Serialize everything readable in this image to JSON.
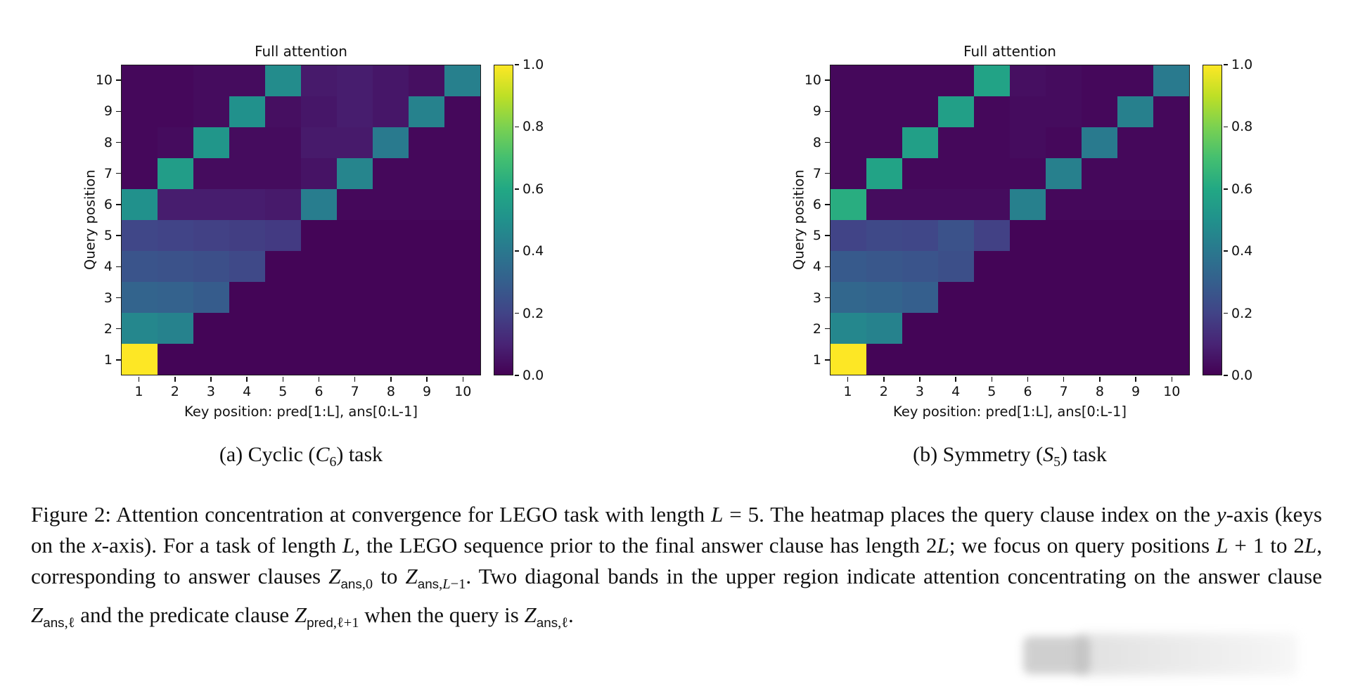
{
  "page": {
    "background": "#ffffff",
    "text_color": "#111111"
  },
  "colormap": {
    "name": "viridis",
    "stops": [
      {
        "t": 0.0,
        "c": "#440154"
      },
      {
        "t": 0.1,
        "c": "#482475"
      },
      {
        "t": 0.2,
        "c": "#414487"
      },
      {
        "t": 0.3,
        "c": "#355f8d"
      },
      {
        "t": 0.4,
        "c": "#2a788e"
      },
      {
        "t": 0.5,
        "c": "#21918c"
      },
      {
        "t": 0.6,
        "c": "#22a884"
      },
      {
        "t": 0.7,
        "c": "#44bf70"
      },
      {
        "t": 0.8,
        "c": "#7ad151"
      },
      {
        "t": 0.9,
        "c": "#bddf26"
      },
      {
        "t": 1.0,
        "c": "#fde725"
      }
    ]
  },
  "chart_data": [
    {
      "type": "heatmap",
      "panel": "a",
      "title": "Full attention",
      "xlabel": "Key position: pred[1:L], ans[0:L-1]",
      "ylabel": "Query position",
      "col_labels": [
        "1",
        "2",
        "3",
        "4",
        "5",
        "6",
        "7",
        "8",
        "9",
        "10"
      ],
      "row_labels_top_to_bottom": [
        "10",
        "9",
        "8",
        "7",
        "6",
        "5",
        "4",
        "3",
        "2",
        "1"
      ],
      "value_range": [
        0,
        1
      ],
      "colorbar_ticks_top_to_bottom": [
        "1.0",
        "0.8",
        "0.6",
        "0.4",
        "0.2",
        "0.0"
      ],
      "values_rows_top_to_bottom": [
        [
          0.02,
          0.02,
          0.03,
          0.03,
          0.48,
          0.07,
          0.08,
          0.06,
          0.04,
          0.43
        ],
        [
          0.02,
          0.02,
          0.03,
          0.5,
          0.04,
          0.06,
          0.08,
          0.06,
          0.44,
          0.02
        ],
        [
          0.02,
          0.03,
          0.52,
          0.03,
          0.03,
          0.07,
          0.07,
          0.41,
          0.02,
          0.02
        ],
        [
          0.02,
          0.55,
          0.03,
          0.03,
          0.03,
          0.05,
          0.45,
          0.02,
          0.02,
          0.02
        ],
        [
          0.5,
          0.08,
          0.08,
          0.08,
          0.07,
          0.42,
          0.02,
          0.02,
          0.02,
          0.02
        ],
        [
          0.21,
          0.2,
          0.19,
          0.18,
          0.17,
          0.01,
          0.01,
          0.01,
          0.01,
          0.01
        ],
        [
          0.26,
          0.25,
          0.24,
          0.22,
          0.01,
          0.01,
          0.01,
          0.01,
          0.01,
          0.01
        ],
        [
          0.32,
          0.31,
          0.29,
          0.01,
          0.01,
          0.01,
          0.01,
          0.01,
          0.01,
          0.01
        ],
        [
          0.46,
          0.44,
          0.01,
          0.01,
          0.01,
          0.01,
          0.01,
          0.01,
          0.01,
          0.01
        ],
        [
          1.0,
          0.01,
          0.01,
          0.01,
          0.01,
          0.01,
          0.01,
          0.01,
          0.01,
          0.01
        ]
      ],
      "subcaption_text": "(a) Cyclic (C6) task",
      "subcaption_html": "(a) Cyclic (<i>C</i><sub>6</sub>) task"
    },
    {
      "type": "heatmap",
      "panel": "b",
      "title": "Full attention",
      "xlabel": "Key position: pred[1:L], ans[0:L-1]",
      "ylabel": "Query position",
      "col_labels": [
        "1",
        "2",
        "3",
        "4",
        "5",
        "6",
        "7",
        "8",
        "9",
        "10"
      ],
      "row_labels_top_to_bottom": [
        "10",
        "9",
        "8",
        "7",
        "6",
        "5",
        "4",
        "3",
        "2",
        "1"
      ],
      "value_range": [
        0,
        1
      ],
      "colorbar_ticks_top_to_bottom": [
        "1.0",
        "0.8",
        "0.6",
        "0.4",
        "0.2",
        "0.0"
      ],
      "values_rows_top_to_bottom": [
        [
          0.02,
          0.02,
          0.02,
          0.02,
          0.58,
          0.04,
          0.03,
          0.02,
          0.02,
          0.41
        ],
        [
          0.02,
          0.02,
          0.02,
          0.56,
          0.02,
          0.03,
          0.03,
          0.02,
          0.43,
          0.02
        ],
        [
          0.02,
          0.02,
          0.56,
          0.02,
          0.02,
          0.03,
          0.02,
          0.41,
          0.02,
          0.02
        ],
        [
          0.02,
          0.58,
          0.02,
          0.02,
          0.02,
          0.02,
          0.43,
          0.02,
          0.02,
          0.02
        ],
        [
          0.62,
          0.03,
          0.03,
          0.03,
          0.03,
          0.43,
          0.02,
          0.02,
          0.02,
          0.02
        ],
        [
          0.2,
          0.22,
          0.21,
          0.25,
          0.19,
          0.01,
          0.01,
          0.01,
          0.01,
          0.01
        ],
        [
          0.28,
          0.27,
          0.26,
          0.24,
          0.01,
          0.01,
          0.01,
          0.01,
          0.01,
          0.01
        ],
        [
          0.33,
          0.32,
          0.3,
          0.01,
          0.01,
          0.01,
          0.01,
          0.01,
          0.01,
          0.01
        ],
        [
          0.46,
          0.44,
          0.01,
          0.01,
          0.01,
          0.01,
          0.01,
          0.01,
          0.01,
          0.01
        ],
        [
          1.0,
          0.01,
          0.01,
          0.01,
          0.01,
          0.01,
          0.01,
          0.01,
          0.01,
          0.01
        ]
      ],
      "subcaption_text": "(b) Symmetry (S5) task",
      "subcaption_html": "(b) Symmetry (<i>S</i><sub>5</sub>) task"
    }
  ],
  "figure_caption": {
    "text": "Figure 2: Attention concentration at convergence for LEGO task with length L = 5. The heatmap places the query clause index on the y-axis (keys on the x-axis). For a task of length L, the LEGO sequence prior to the final answer clause has length 2L; we focus on query positions L + 1 to 2L, corresponding to answer clauses Z_ans,0 to Z_ans,L-1. Two diagonal bands in the upper region indicate attention concentrating on the answer clause Z_ans,l and the predicate clause Z_pred,l+1 when the query is Z_ans,l.",
    "html": "Figure 2: Attention concentration at convergence for LEGO task with length <i>L</i> = 5. The heatmap places the query clause index on the <i>y</i>-axis (keys on the <i>x</i>-axis). For a task of length <i>L</i>, the LEGO sequence prior to the final answer clause has length 2<i>L</i>; we focus on query positions <i>L</i> + 1 to 2<i>L</i>, corresponding to answer clauses <i>Z</i><sub><span class='sf'>ans</span>,0</sub> to <i>Z</i><sub><span class='sf'>ans</span>,<i>L</i>−1</sub>. Two diagonal bands in the upper region indicate attention concentrating on the answer clause <i>Z</i><sub><span class='sf'>ans</span>,ℓ</sub> and the predicate clause <i>Z</i><sub><span class='sf'>pred</span>,ℓ+1</sub> when the query is <i>Z</i><sub><span class='sf'>ans</span>,ℓ</sub>."
  }
}
